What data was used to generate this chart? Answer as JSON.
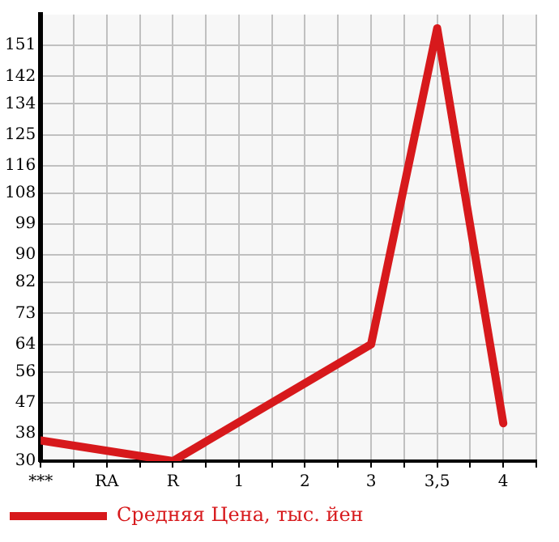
{
  "chart_data": {
    "type": "line",
    "categories": [
      "***",
      "RA",
      "R",
      "1",
      "2",
      "3",
      "3,5",
      "4"
    ],
    "series": [
      {
        "name": "Средняя Цена, тыс. йен",
        "color": "#d7191c",
        "values": [
          36,
          null,
          30,
          null,
          null,
          64,
          156,
          41
        ]
      }
    ],
    "ylim": [
      30,
      160
    ],
    "yticks": [
      30,
      38,
      47,
      56,
      64,
      73,
      82,
      90,
      99,
      108,
      116,
      125,
      134,
      142,
      151
    ],
    "grid": true,
    "legend": "bottom left",
    "marker": "none",
    "line_style": "solid"
  }
}
